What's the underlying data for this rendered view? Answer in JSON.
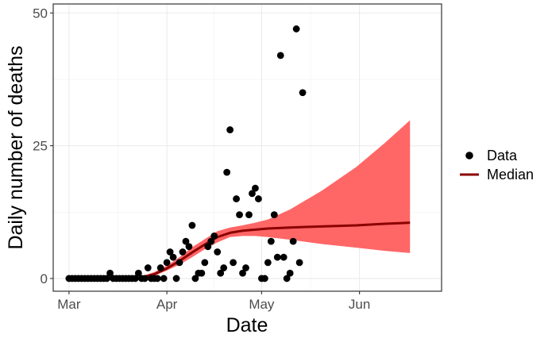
{
  "chart_data": {
    "type": "scatter",
    "xlabel": "Date",
    "ylabel": "Daily number of deaths",
    "x_ticks": [
      {
        "date": "2020-03-01",
        "label": "Mar"
      },
      {
        "date": "2020-04-01",
        "label": "Apr"
      },
      {
        "date": "2020-05-01",
        "label": "May"
      },
      {
        "date": "2020-06-01",
        "label": "Jun"
      }
    ],
    "y_ticks": [
      0,
      25,
      50
    ],
    "xlim": [
      "2020-02-25",
      "2020-06-27"
    ],
    "ylim": [
      -2.4,
      51.7
    ],
    "grid": true,
    "legend_position": "right",
    "legend": [
      {
        "label": "Data",
        "symbol": "point",
        "color": "#000000"
      },
      {
        "label": "Median",
        "symbol": "line",
        "color": "#8b0000"
      }
    ],
    "colors": {
      "points": "#000000",
      "median": "#8b0000",
      "band": "#ff6666",
      "grid": "#ebebeb",
      "panel_border": "#333333"
    },
    "series": [
      {
        "name": "Data",
        "kind": "points",
        "points": [
          [
            "2020-03-01",
            0
          ],
          [
            "2020-03-02",
            0
          ],
          [
            "2020-03-03",
            0
          ],
          [
            "2020-03-04",
            0
          ],
          [
            "2020-03-05",
            0
          ],
          [
            "2020-03-06",
            0
          ],
          [
            "2020-03-07",
            0
          ],
          [
            "2020-03-08",
            0
          ],
          [
            "2020-03-09",
            0
          ],
          [
            "2020-03-10",
            0
          ],
          [
            "2020-03-11",
            0
          ],
          [
            "2020-03-12",
            0
          ],
          [
            "2020-03-13",
            0
          ],
          [
            "2020-03-14",
            1
          ],
          [
            "2020-03-15",
            0
          ],
          [
            "2020-03-16",
            0
          ],
          [
            "2020-03-17",
            0
          ],
          [
            "2020-03-18",
            0
          ],
          [
            "2020-03-19",
            0
          ],
          [
            "2020-03-20",
            0
          ],
          [
            "2020-03-21",
            0
          ],
          [
            "2020-03-22",
            0
          ],
          [
            "2020-03-23",
            1
          ],
          [
            "2020-03-24",
            0
          ],
          [
            "2020-03-25",
            0
          ],
          [
            "2020-03-26",
            2
          ],
          [
            "2020-03-27",
            0
          ],
          [
            "2020-03-28",
            0
          ],
          [
            "2020-03-29",
            0
          ],
          [
            "2020-03-30",
            2
          ],
          [
            "2020-03-31",
            0
          ],
          [
            "2020-04-01",
            3
          ],
          [
            "2020-04-02",
            5
          ],
          [
            "2020-04-03",
            4
          ],
          [
            "2020-04-04",
            0
          ],
          [
            "2020-04-05",
            3
          ],
          [
            "2020-04-06",
            5
          ],
          [
            "2020-04-07",
            7
          ],
          [
            "2020-04-08",
            6
          ],
          [
            "2020-04-09",
            10
          ],
          [
            "2020-04-10",
            0
          ],
          [
            "2020-04-11",
            1
          ],
          [
            "2020-04-12",
            1
          ],
          [
            "2020-04-13",
            3
          ],
          [
            "2020-04-14",
            6
          ],
          [
            "2020-04-15",
            7
          ],
          [
            "2020-04-16",
            8
          ],
          [
            "2020-04-17",
            5
          ],
          [
            "2020-04-18",
            1
          ],
          [
            "2020-04-19",
            2
          ],
          [
            "2020-04-20",
            20
          ],
          [
            "2020-04-21",
            28
          ],
          [
            "2020-04-22",
            3
          ],
          [
            "2020-04-23",
            15
          ],
          [
            "2020-04-24",
            12
          ],
          [
            "2020-04-25",
            1
          ],
          [
            "2020-04-26",
            2
          ],
          [
            "2020-04-27",
            12
          ],
          [
            "2020-04-28",
            16
          ],
          [
            "2020-04-29",
            17
          ],
          [
            "2020-04-30",
            15
          ],
          [
            "2020-05-01",
            0
          ],
          [
            "2020-05-02",
            0
          ],
          [
            "2020-05-03",
            3
          ],
          [
            "2020-05-04",
            7
          ],
          [
            "2020-05-05",
            12
          ],
          [
            "2020-05-06",
            4
          ],
          [
            "2020-05-07",
            42
          ],
          [
            "2020-05-08",
            4
          ],
          [
            "2020-05-09",
            0
          ],
          [
            "2020-05-10",
            1
          ],
          [
            "2020-05-11",
            7
          ],
          [
            "2020-05-12",
            47
          ],
          [
            "2020-05-13",
            3
          ],
          [
            "2020-05-14",
            35
          ]
        ]
      },
      {
        "name": "Median",
        "kind": "line",
        "points": [
          [
            "2020-03-24",
            0.2
          ],
          [
            "2020-03-28",
            0.8
          ],
          [
            "2020-04-01",
            1.9
          ],
          [
            "2020-04-05",
            3.3
          ],
          [
            "2020-04-09",
            4.9
          ],
          [
            "2020-04-13",
            6.4
          ],
          [
            "2020-04-17",
            7.8
          ],
          [
            "2020-04-21",
            8.6
          ],
          [
            "2020-04-25",
            9.0
          ],
          [
            "2020-04-29",
            9.2
          ],
          [
            "2020-05-03",
            9.4
          ],
          [
            "2020-05-10",
            9.6
          ],
          [
            "2020-05-20",
            9.8
          ],
          [
            "2020-05-31",
            10.0
          ],
          [
            "2020-06-09",
            10.3
          ],
          [
            "2020-06-17",
            10.5
          ]
        ]
      },
      {
        "name": "Interval",
        "kind": "band",
        "points": [
          [
            "2020-03-24",
            0.0,
            0.4
          ],
          [
            "2020-03-28",
            0.5,
            1.2
          ],
          [
            "2020-04-01",
            1.5,
            2.4
          ],
          [
            "2020-04-05",
            2.6,
            4.0
          ],
          [
            "2020-04-09",
            4.0,
            5.9
          ],
          [
            "2020-04-13",
            5.5,
            7.4
          ],
          [
            "2020-04-17",
            6.8,
            8.9
          ],
          [
            "2020-04-21",
            7.8,
            9.6
          ],
          [
            "2020-04-25",
            8.0,
            10.0
          ],
          [
            "2020-04-29",
            8.0,
            10.5
          ],
          [
            "2020-05-03",
            7.8,
            11.1
          ],
          [
            "2020-05-10",
            7.3,
            13.0
          ],
          [
            "2020-05-20",
            6.5,
            16.5
          ],
          [
            "2020-05-31",
            5.8,
            21.0
          ],
          [
            "2020-06-09",
            5.2,
            25.5
          ],
          [
            "2020-06-17",
            4.8,
            29.8
          ]
        ]
      }
    ]
  }
}
